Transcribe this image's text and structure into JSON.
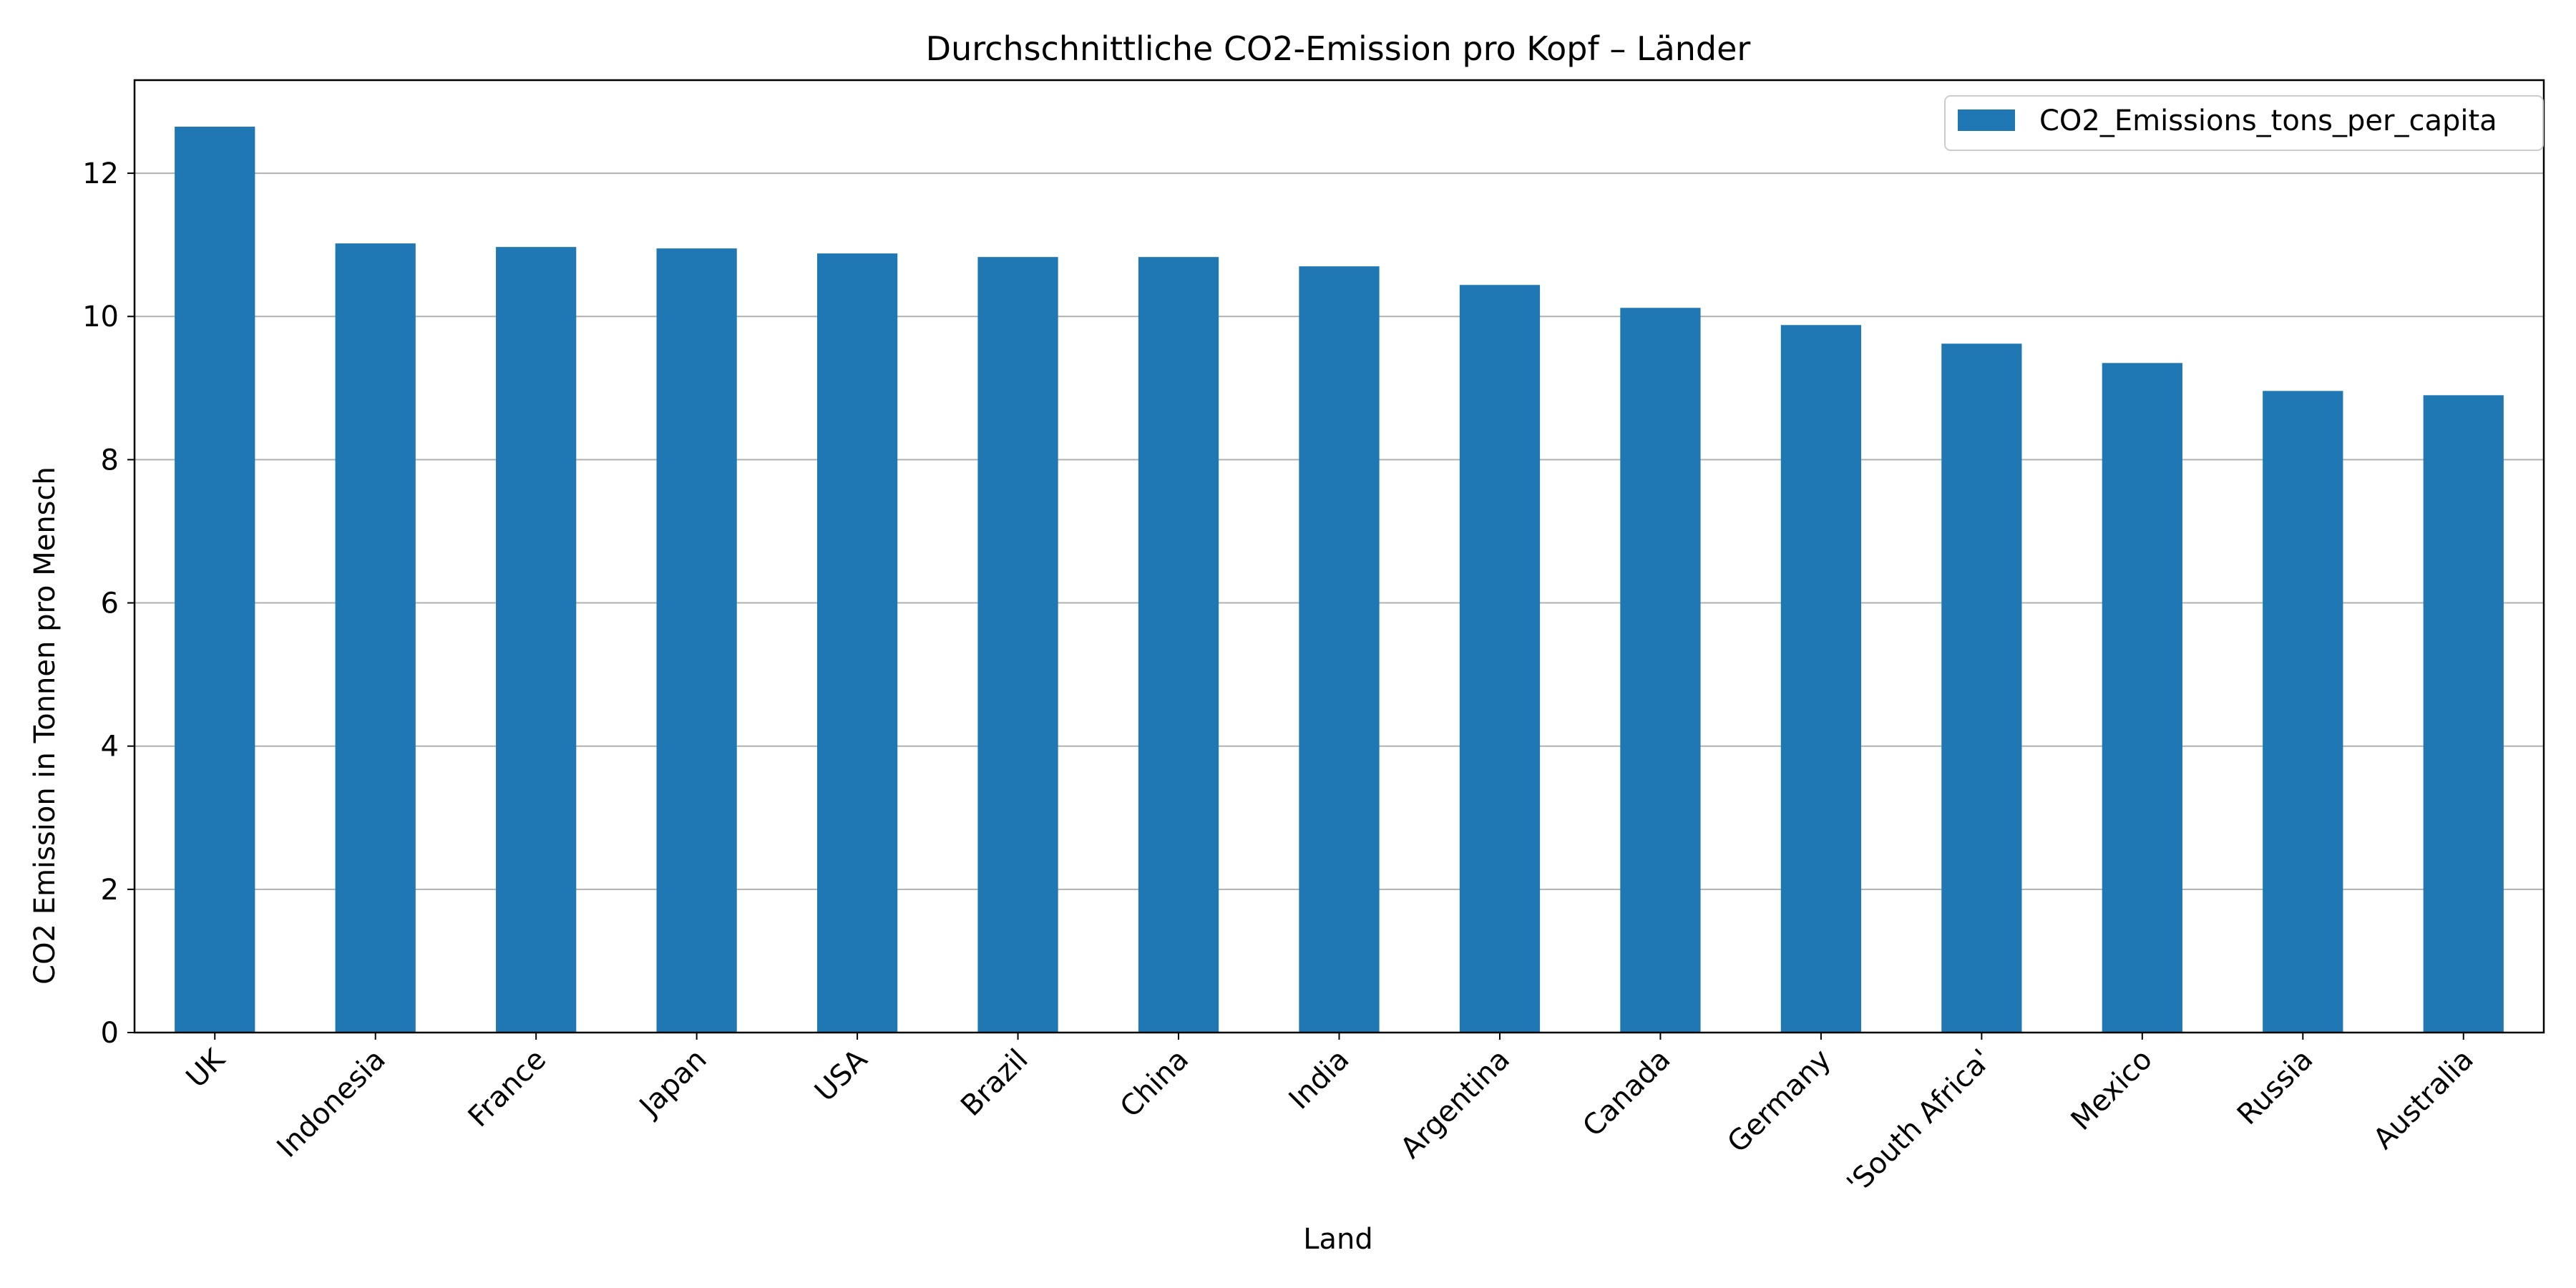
{
  "chart_data": {
    "type": "bar",
    "title": "Durchschnittliche CO2-Emission pro Kopf – Länder",
    "xlabel": "Land",
    "ylabel": "CO2 Emission in Tonnen pro Mensch",
    "categories": [
      "UK",
      "Indonesia",
      "France",
      "Japan",
      "USA",
      "Brazil",
      "China",
      "India",
      "Argentina",
      "Canada",
      "Germany",
      "'South Africa'",
      "Mexico",
      "Russia",
      "Australia"
    ],
    "series": [
      {
        "name": "CO2_Emissions_tons_per_capita",
        "values": [
          12.65,
          11.02,
          10.97,
          10.95,
          10.88,
          10.83,
          10.83,
          10.7,
          10.44,
          10.12,
          9.88,
          9.62,
          9.35,
          8.96,
          8.9
        ],
        "color": "#1f77b4"
      }
    ],
    "ylim": [
      0,
      13.3
    ],
    "yticks": [
      0,
      2,
      4,
      6,
      8,
      10,
      12
    ],
    "grid": "y",
    "legend": "upper-right",
    "xtick_rotation": 45
  }
}
